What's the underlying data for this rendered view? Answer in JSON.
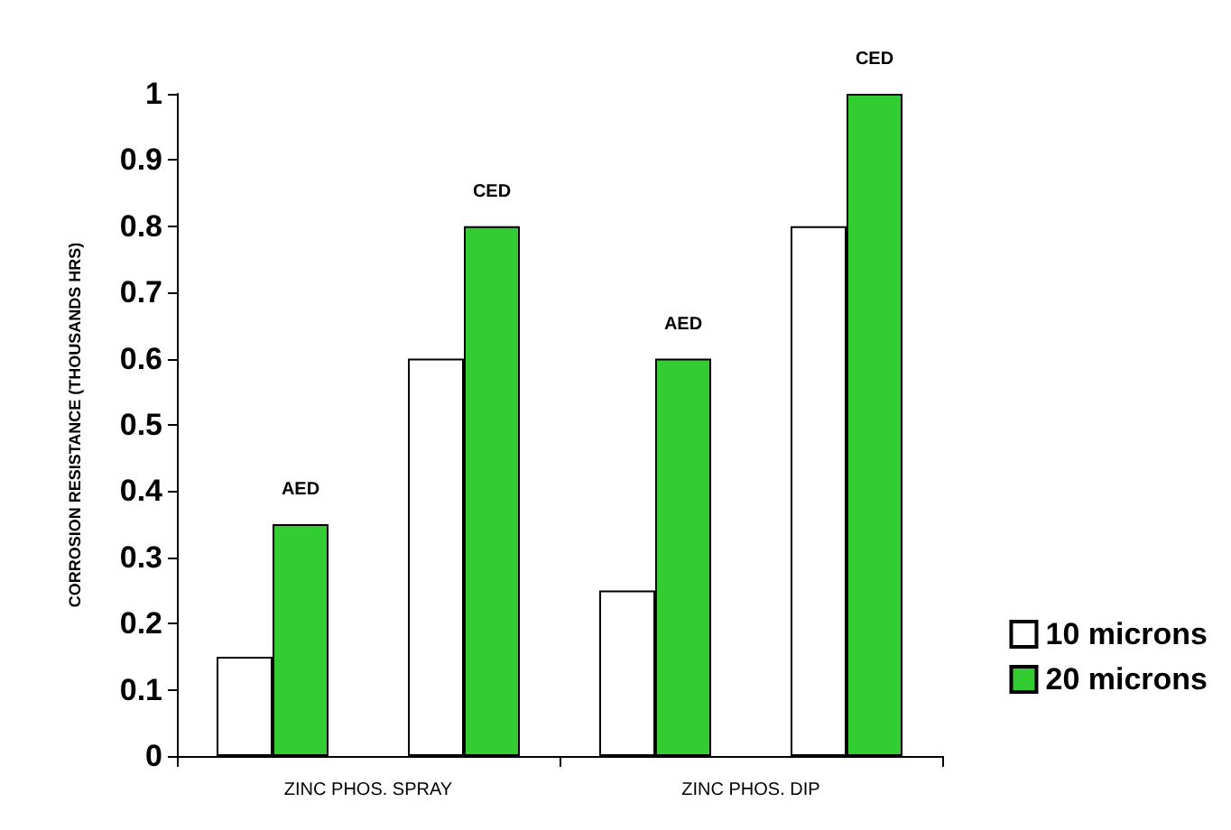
{
  "chart_data": {
    "type": "bar",
    "ylabel": "CORROSION RESISTANCE (THOUSANDS HRS)",
    "categories": [
      null,
      null,
      null,
      null
    ],
    "series": [
      {
        "name": "10 microns",
        "color": "#ffffff",
        "values": [
          0.15,
          0.6,
          0.25,
          0.8
        ]
      },
      {
        "name": "20 microns",
        "color": "#33cc33",
        "values": [
          0.35,
          0.8,
          0.6,
          1.0
        ],
        "value_labels": [
          "AED",
          "CED",
          "AED",
          "CED"
        ]
      }
    ],
    "annotations": [
      "ZINC PHOS. SPRAY",
      "ZINC PHOS. DIP"
    ],
    "ylim": [
      0,
      1
    ],
    "yticks": [
      0,
      0.1,
      0.2,
      0.3,
      0.4,
      0.5,
      0.6,
      0.7,
      0.8,
      0.9,
      1
    ],
    "grid": false,
    "legend": "right"
  }
}
